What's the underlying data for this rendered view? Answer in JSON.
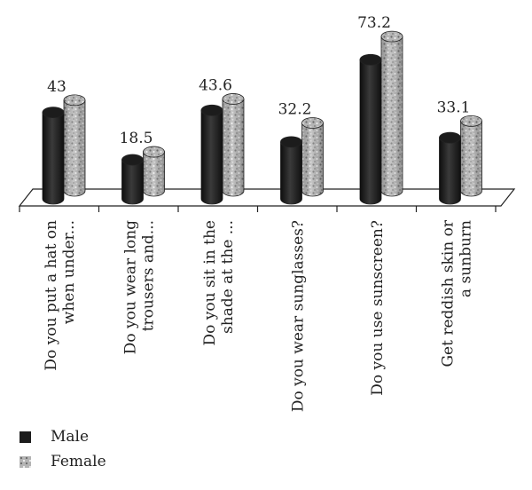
{
  "chart_data": {
    "type": "bar",
    "categories": [
      [
        "Do you put a hat on",
        "when under..."
      ],
      [
        "Do you wear long",
        "trousers and..."
      ],
      [
        "Do you sit in the",
        "shade at the ..."
      ],
      [
        "Do you wear sunglasses?"
      ],
      [
        "Do you use sunscreen?"
      ],
      [
        "Get reddish skin or",
        "a sunburn"
      ]
    ],
    "series": [
      {
        "name": "Male",
        "values": [
          41,
          18.5,
          42,
          27,
          66,
          29
        ]
      },
      {
        "name": "Female",
        "values": [
          43,
          18.5,
          43.6,
          32.2,
          73.2,
          33.1
        ]
      }
    ],
    "data_labels": [
      "43",
      "18.5",
      "43.6",
      "32.2",
      "73.2",
      "33.1"
    ],
    "ylim": [
      0,
      80
    ],
    "colors": {
      "male": "#1c1c1c",
      "female": "#b4b4b4"
    }
  },
  "legend": {
    "male_label": "Male",
    "female_label": "Female"
  }
}
